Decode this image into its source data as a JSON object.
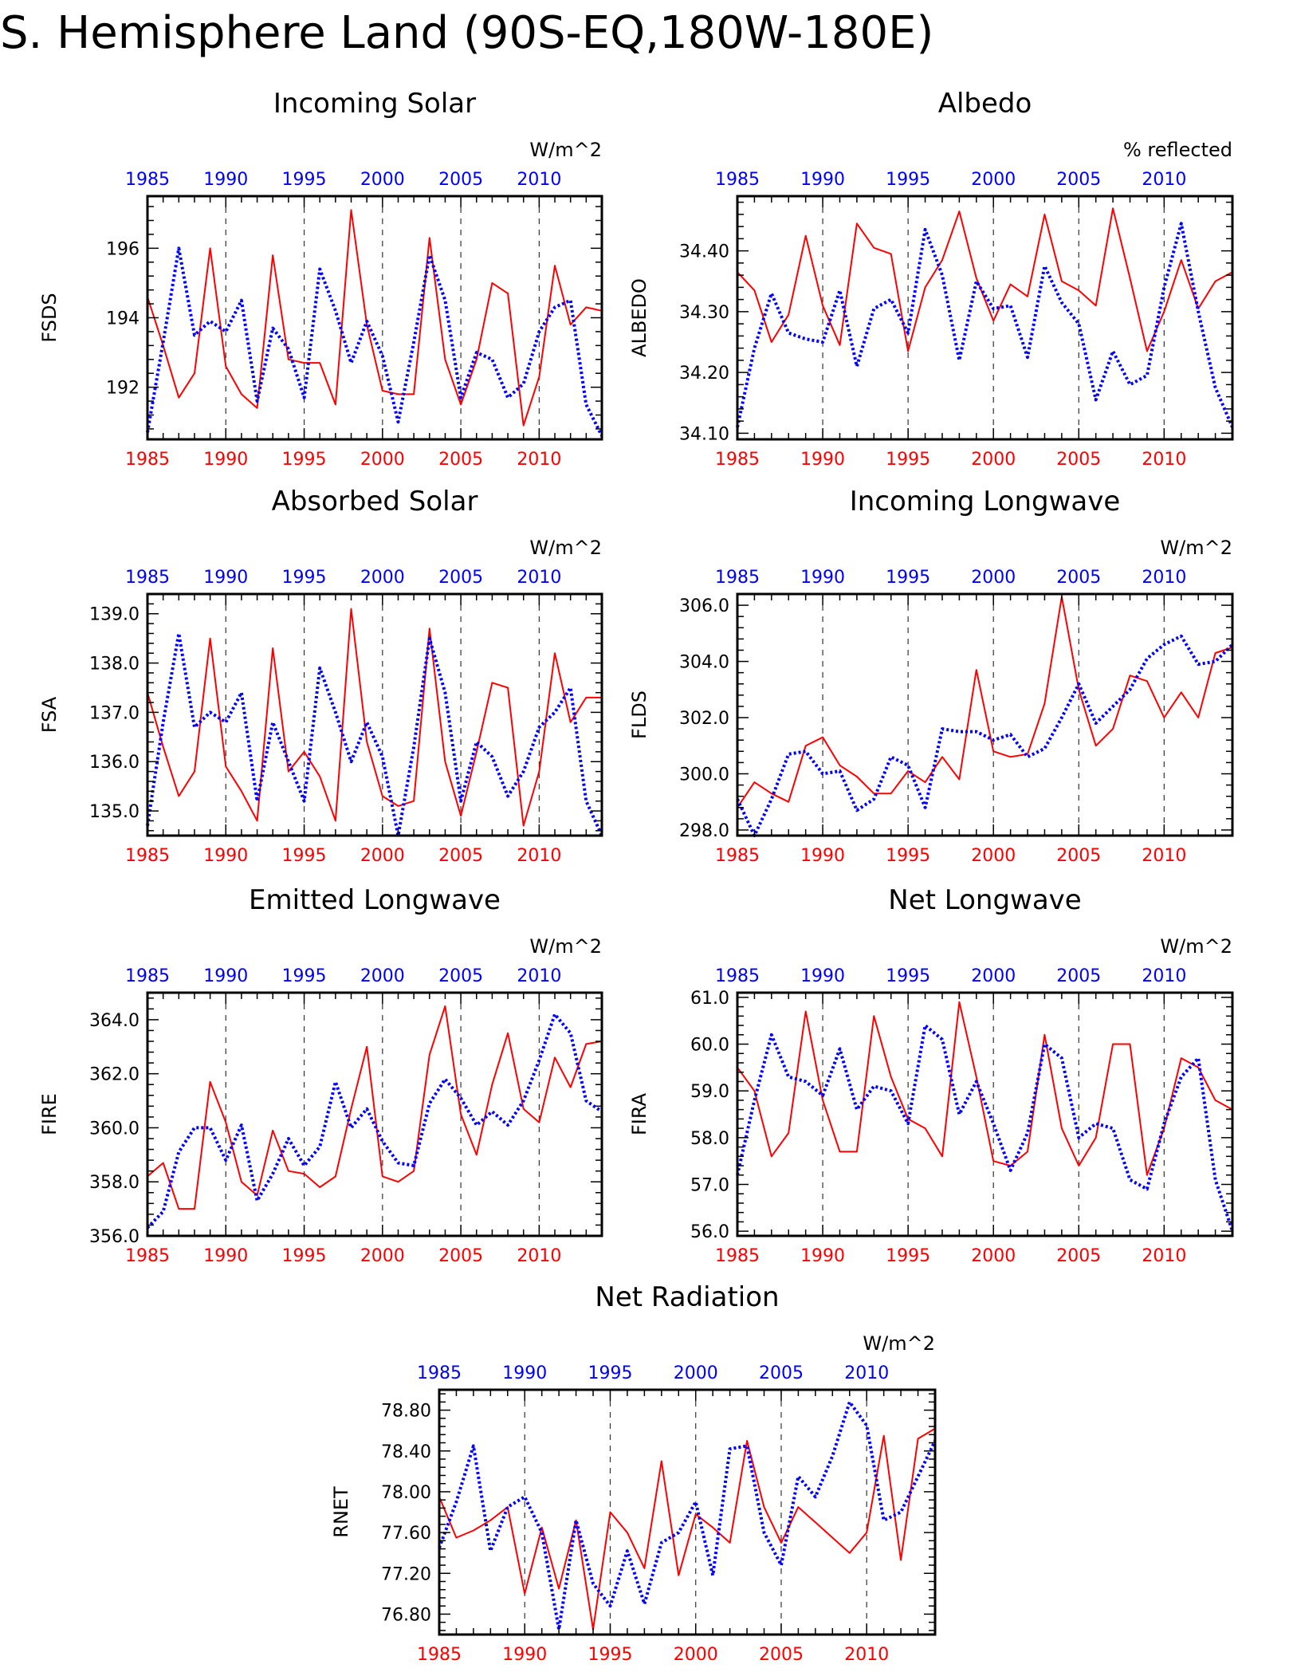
{
  "page_title": "S. Hemisphere Land (90S-EQ,180W-180E)",
  "colors": {
    "red_series": "#ff0000",
    "blue_series": "#0000ff",
    "axis": "#000000"
  },
  "chart_data": [
    {
      "type": "line",
      "title": "Incoming Solar",
      "units": "W/m^2",
      "ylabel": "FSDS",
      "ylim": [
        190.5,
        197.5
      ],
      "yticks": [
        192,
        194,
        196
      ],
      "ytick_labels": [
        "192",
        "194",
        "196"
      ],
      "xlim": [
        1985,
        2014
      ],
      "xticks_bottom": [
        1985,
        1990,
        1995,
        2000,
        2005,
        2010
      ],
      "xticks_top": [
        1985,
        1990,
        1995,
        2000,
        2005,
        2010
      ],
      "dashed_verticals": [
        1990,
        1995,
        2000,
        2005,
        2010
      ],
      "series": [
        {
          "style": "solid-red",
          "x_start": 1985,
          "values": [
            194.6,
            193.2,
            191.7,
            192.4,
            196.0,
            192.6,
            191.8,
            191.4,
            195.8,
            192.8,
            192.7,
            192.7,
            191.5,
            197.1,
            193.8,
            191.9,
            191.8,
            191.8,
            196.3,
            192.8,
            191.5,
            192.8,
            195.0,
            194.7,
            190.9,
            192.3,
            195.5,
            193.8,
            194.3,
            194.2
          ]
        },
        {
          "style": "dotted-blue",
          "x_start": 1985,
          "values": [
            190.7,
            193.3,
            196.0,
            193.5,
            193.9,
            193.6,
            194.5,
            191.6,
            193.7,
            193.1,
            191.7,
            195.4,
            194.2,
            192.7,
            193.9,
            192.9,
            191.0,
            193.3,
            195.8,
            194.5,
            191.7,
            193.0,
            192.8,
            191.7,
            192.1,
            193.6,
            194.3,
            194.5,
            191.5,
            190.6
          ]
        }
      ]
    },
    {
      "type": "line",
      "title": "Albedo",
      "units": "% reflected",
      "ylabel": "ALBEDO",
      "ylim": [
        34.09,
        34.49
      ],
      "yticks": [
        34.1,
        34.2,
        34.3,
        34.4
      ],
      "ytick_labels": [
        "34.10",
        "34.20",
        "34.30",
        "34.40"
      ],
      "xlim": [
        1985,
        2014
      ],
      "xticks_bottom": [
        1985,
        1990,
        1995,
        2000,
        2005,
        2010
      ],
      "xticks_top": [
        1985,
        1990,
        1995,
        2000,
        2005,
        2010
      ],
      "dashed_verticals": [
        1990,
        1995,
        2000,
        2005,
        2010
      ],
      "series": [
        {
          "style": "solid-red",
          "x_start": 1985,
          "values": [
            34.365,
            34.335,
            34.25,
            34.295,
            34.425,
            34.31,
            34.245,
            34.445,
            34.405,
            34.395,
            34.235,
            34.34,
            34.385,
            34.465,
            34.355,
            34.285,
            34.345,
            34.325,
            34.46,
            34.35,
            34.335,
            34.31,
            34.47,
            34.355,
            34.235,
            34.3,
            34.385,
            34.305,
            34.35,
            34.365
          ]
        },
        {
          "style": "dotted-blue",
          "x_start": 1985,
          "values": [
            34.11,
            34.24,
            34.33,
            34.265,
            34.255,
            34.25,
            34.335,
            34.21,
            34.305,
            34.32,
            34.265,
            34.435,
            34.36,
            34.22,
            34.35,
            34.305,
            34.31,
            34.225,
            34.375,
            34.315,
            34.28,
            34.155,
            34.235,
            34.18,
            34.195,
            34.34,
            34.445,
            34.3,
            34.175,
            34.11
          ]
        }
      ]
    },
    {
      "type": "line",
      "title": "Absorbed Solar",
      "units": "W/m^2",
      "ylabel": "FSA",
      "ylim": [
        134.5,
        139.4
      ],
      "yticks": [
        135.0,
        136.0,
        137.0,
        138.0,
        139.0
      ],
      "ytick_labels": [
        "135.0",
        "136.0",
        "137.0",
        "138.0",
        "139.0"
      ],
      "xlim": [
        1985,
        2014
      ],
      "xticks_bottom": [
        1985,
        1990,
        1995,
        2000,
        2005,
        2010
      ],
      "xticks_top": [
        1985,
        1990,
        1995,
        2000,
        2005,
        2010
      ],
      "dashed_verticals": [
        1990,
        1995,
        2000,
        2005,
        2010
      ],
      "series": [
        {
          "style": "solid-red",
          "x_start": 1985,
          "values": [
            137.4,
            136.3,
            135.3,
            135.8,
            138.5,
            135.9,
            135.4,
            134.8,
            138.3,
            135.8,
            136.2,
            135.7,
            134.8,
            139.1,
            136.4,
            135.3,
            135.1,
            135.2,
            138.7,
            136.0,
            134.9,
            136.2,
            137.6,
            137.5,
            134.7,
            135.8,
            138.2,
            136.8,
            137.3,
            137.3
          ]
        },
        {
          "style": "dotted-blue",
          "x_start": 1985,
          "values": [
            134.7,
            136.8,
            138.6,
            136.7,
            137.0,
            136.8,
            137.4,
            135.2,
            136.8,
            136.0,
            135.2,
            137.9,
            137.0,
            136.0,
            136.8,
            136.1,
            134.5,
            136.3,
            138.5,
            137.4,
            135.2,
            136.4,
            136.1,
            135.3,
            135.8,
            136.7,
            137.0,
            137.5,
            135.2,
            134.5
          ]
        }
      ]
    },
    {
      "type": "line",
      "title": "Incoming Longwave",
      "units": "W/m^2",
      "ylabel": "FLDS",
      "ylim": [
        297.8,
        306.4
      ],
      "yticks": [
        298.0,
        300.0,
        302.0,
        304.0,
        306.0
      ],
      "ytick_labels": [
        "298.0",
        "300.0",
        "302.0",
        "304.0",
        "306.0"
      ],
      "xlim": [
        1985,
        2014
      ],
      "xticks_bottom": [
        1985,
        1990,
        1995,
        2000,
        2005,
        2010
      ],
      "xticks_top": [
        1985,
        1990,
        1995,
        2000,
        2005,
        2010
      ],
      "dashed_verticals": [
        1990,
        1995,
        2000,
        2005,
        2010
      ],
      "series": [
        {
          "style": "solid-red",
          "x_start": 1985,
          "values": [
            298.8,
            299.7,
            299.3,
            299.0,
            301.0,
            301.3,
            300.3,
            299.9,
            299.3,
            299.3,
            300.1,
            299.7,
            300.6,
            299.8,
            303.7,
            300.8,
            300.6,
            300.7,
            302.5,
            306.3,
            303.0,
            301.0,
            301.6,
            303.5,
            303.3,
            302.0,
            302.9,
            302.0,
            304.3,
            304.5
          ]
        },
        {
          "style": "dotted-blue",
          "x_start": 1985,
          "values": [
            299.1,
            297.8,
            299.1,
            300.7,
            300.8,
            300.0,
            300.1,
            298.7,
            299.1,
            300.6,
            300.3,
            298.8,
            301.6,
            301.5,
            301.5,
            301.2,
            301.4,
            300.6,
            300.9,
            302.0,
            303.2,
            301.8,
            302.4,
            303.0,
            304.1,
            304.6,
            304.9,
            303.9,
            304.0,
            304.6
          ]
        }
      ]
    },
    {
      "type": "line",
      "title": "Emitted Longwave",
      "units": "W/m^2",
      "ylabel": "FIRE",
      "ylim": [
        356.0,
        365.0
      ],
      "yticks": [
        356.0,
        358.0,
        360.0,
        362.0,
        364.0
      ],
      "ytick_labels": [
        "356.0",
        "358.0",
        "360.0",
        "362.0",
        "364.0"
      ],
      "xlim": [
        1985,
        2014
      ],
      "xticks_bottom": [
        1985,
        1990,
        1995,
        2000,
        2005,
        2010
      ],
      "xticks_top": [
        1985,
        1990,
        1995,
        2000,
        2005,
        2010
      ],
      "dashed_verticals": [
        1990,
        1995,
        2000,
        2005,
        2010
      ],
      "series": [
        {
          "style": "solid-red",
          "x_start": 1985,
          "values": [
            358.2,
            358.7,
            357.0,
            357.0,
            361.7,
            360.2,
            358.0,
            357.5,
            359.9,
            358.4,
            358.3,
            357.8,
            358.2,
            360.7,
            363.0,
            358.2,
            358.0,
            358.4,
            362.7,
            364.5,
            360.5,
            359.0,
            361.6,
            363.5,
            360.7,
            360.2,
            362.6,
            361.5,
            363.1,
            363.2
          ]
        },
        {
          "style": "dotted-blue",
          "x_start": 1985,
          "values": [
            356.3,
            356.9,
            359.1,
            360.0,
            360.0,
            358.8,
            360.1,
            357.3,
            358.3,
            359.6,
            358.6,
            359.3,
            361.7,
            360.0,
            360.7,
            359.5,
            358.7,
            358.6,
            360.9,
            361.8,
            361.1,
            360.1,
            360.6,
            360.1,
            361.0,
            362.5,
            364.2,
            363.5,
            361.0,
            360.6
          ]
        }
      ]
    },
    {
      "type": "line",
      "title": "Net Longwave",
      "units": "W/m^2",
      "ylabel": "FIRA",
      "ylim": [
        55.9,
        61.1
      ],
      "yticks": [
        56.0,
        57.0,
        58.0,
        59.0,
        60.0,
        61.0
      ],
      "ytick_labels": [
        "56.0",
        "57.0",
        "58.0",
        "59.0",
        "60.0",
        "61.0"
      ],
      "xlim": [
        1985,
        2014
      ],
      "xticks_bottom": [
        1985,
        1990,
        1995,
        2000,
        2005,
        2010
      ],
      "xticks_top": [
        1985,
        1990,
        1995,
        2000,
        2005,
        2010
      ],
      "dashed_verticals": [
        1990,
        1995,
        2000,
        2005,
        2010
      ],
      "series": [
        {
          "style": "solid-red",
          "x_start": 1985,
          "values": [
            59.5,
            59.0,
            57.6,
            58.1,
            60.7,
            58.8,
            57.7,
            57.7,
            60.6,
            59.3,
            58.4,
            58.2,
            57.6,
            60.9,
            59.3,
            57.5,
            57.4,
            57.7,
            60.2,
            58.2,
            57.4,
            58.0,
            60.0,
            60.0,
            57.2,
            58.2,
            59.7,
            59.5,
            58.8,
            58.6
          ]
        },
        {
          "style": "dotted-blue",
          "x_start": 1985,
          "values": [
            57.2,
            58.8,
            60.2,
            59.3,
            59.2,
            58.9,
            59.9,
            58.6,
            59.1,
            59.0,
            58.3,
            60.4,
            60.1,
            58.5,
            59.2,
            58.3,
            57.3,
            58.1,
            60.0,
            59.7,
            58.0,
            58.3,
            58.2,
            57.1,
            56.9,
            58.3,
            59.3,
            59.7,
            57.1,
            56.0
          ]
        }
      ]
    },
    {
      "type": "line",
      "title": "Net Radiation",
      "units": "W/m^2",
      "ylabel": "RNET",
      "ylim": [
        76.6,
        79.0
      ],
      "yticks": [
        76.8,
        77.2,
        77.6,
        78.0,
        78.4,
        78.8
      ],
      "ytick_labels": [
        "76.80",
        "77.20",
        "77.60",
        "78.00",
        "78.40",
        "78.80"
      ],
      "xlim": [
        1985,
        2014
      ],
      "xticks_bottom": [
        1985,
        1990,
        1995,
        2000,
        2005,
        2010
      ],
      "xticks_top": [
        1985,
        1990,
        1995,
        2000,
        2005,
        2010
      ],
      "dashed_verticals": [
        1990,
        1995,
        2000,
        2005,
        2010
      ],
      "series": [
        {
          "style": "solid-red",
          "x_start": 1985,
          "values": [
            77.95,
            77.55,
            77.62,
            77.72,
            77.85,
            77.0,
            77.65,
            77.05,
            77.72,
            76.65,
            77.8,
            77.6,
            77.25,
            78.3,
            77.18,
            77.78,
            77.65,
            77.5,
            78.5,
            77.85,
            77.5,
            77.85,
            77.7,
            77.55,
            77.4,
            77.6,
            78.55,
            77.33,
            78.52,
            78.62
          ]
        },
        {
          "style": "dotted-blue",
          "x_start": 1985,
          "values": [
            77.45,
            77.9,
            78.45,
            77.42,
            77.85,
            77.95,
            77.6,
            76.65,
            77.72,
            77.1,
            76.88,
            77.42,
            76.9,
            77.5,
            77.6,
            77.9,
            77.18,
            78.42,
            78.45,
            77.6,
            77.28,
            78.15,
            77.95,
            78.35,
            78.88,
            78.65,
            77.72,
            77.8,
            78.15,
            78.5
          ]
        }
      ]
    }
  ]
}
